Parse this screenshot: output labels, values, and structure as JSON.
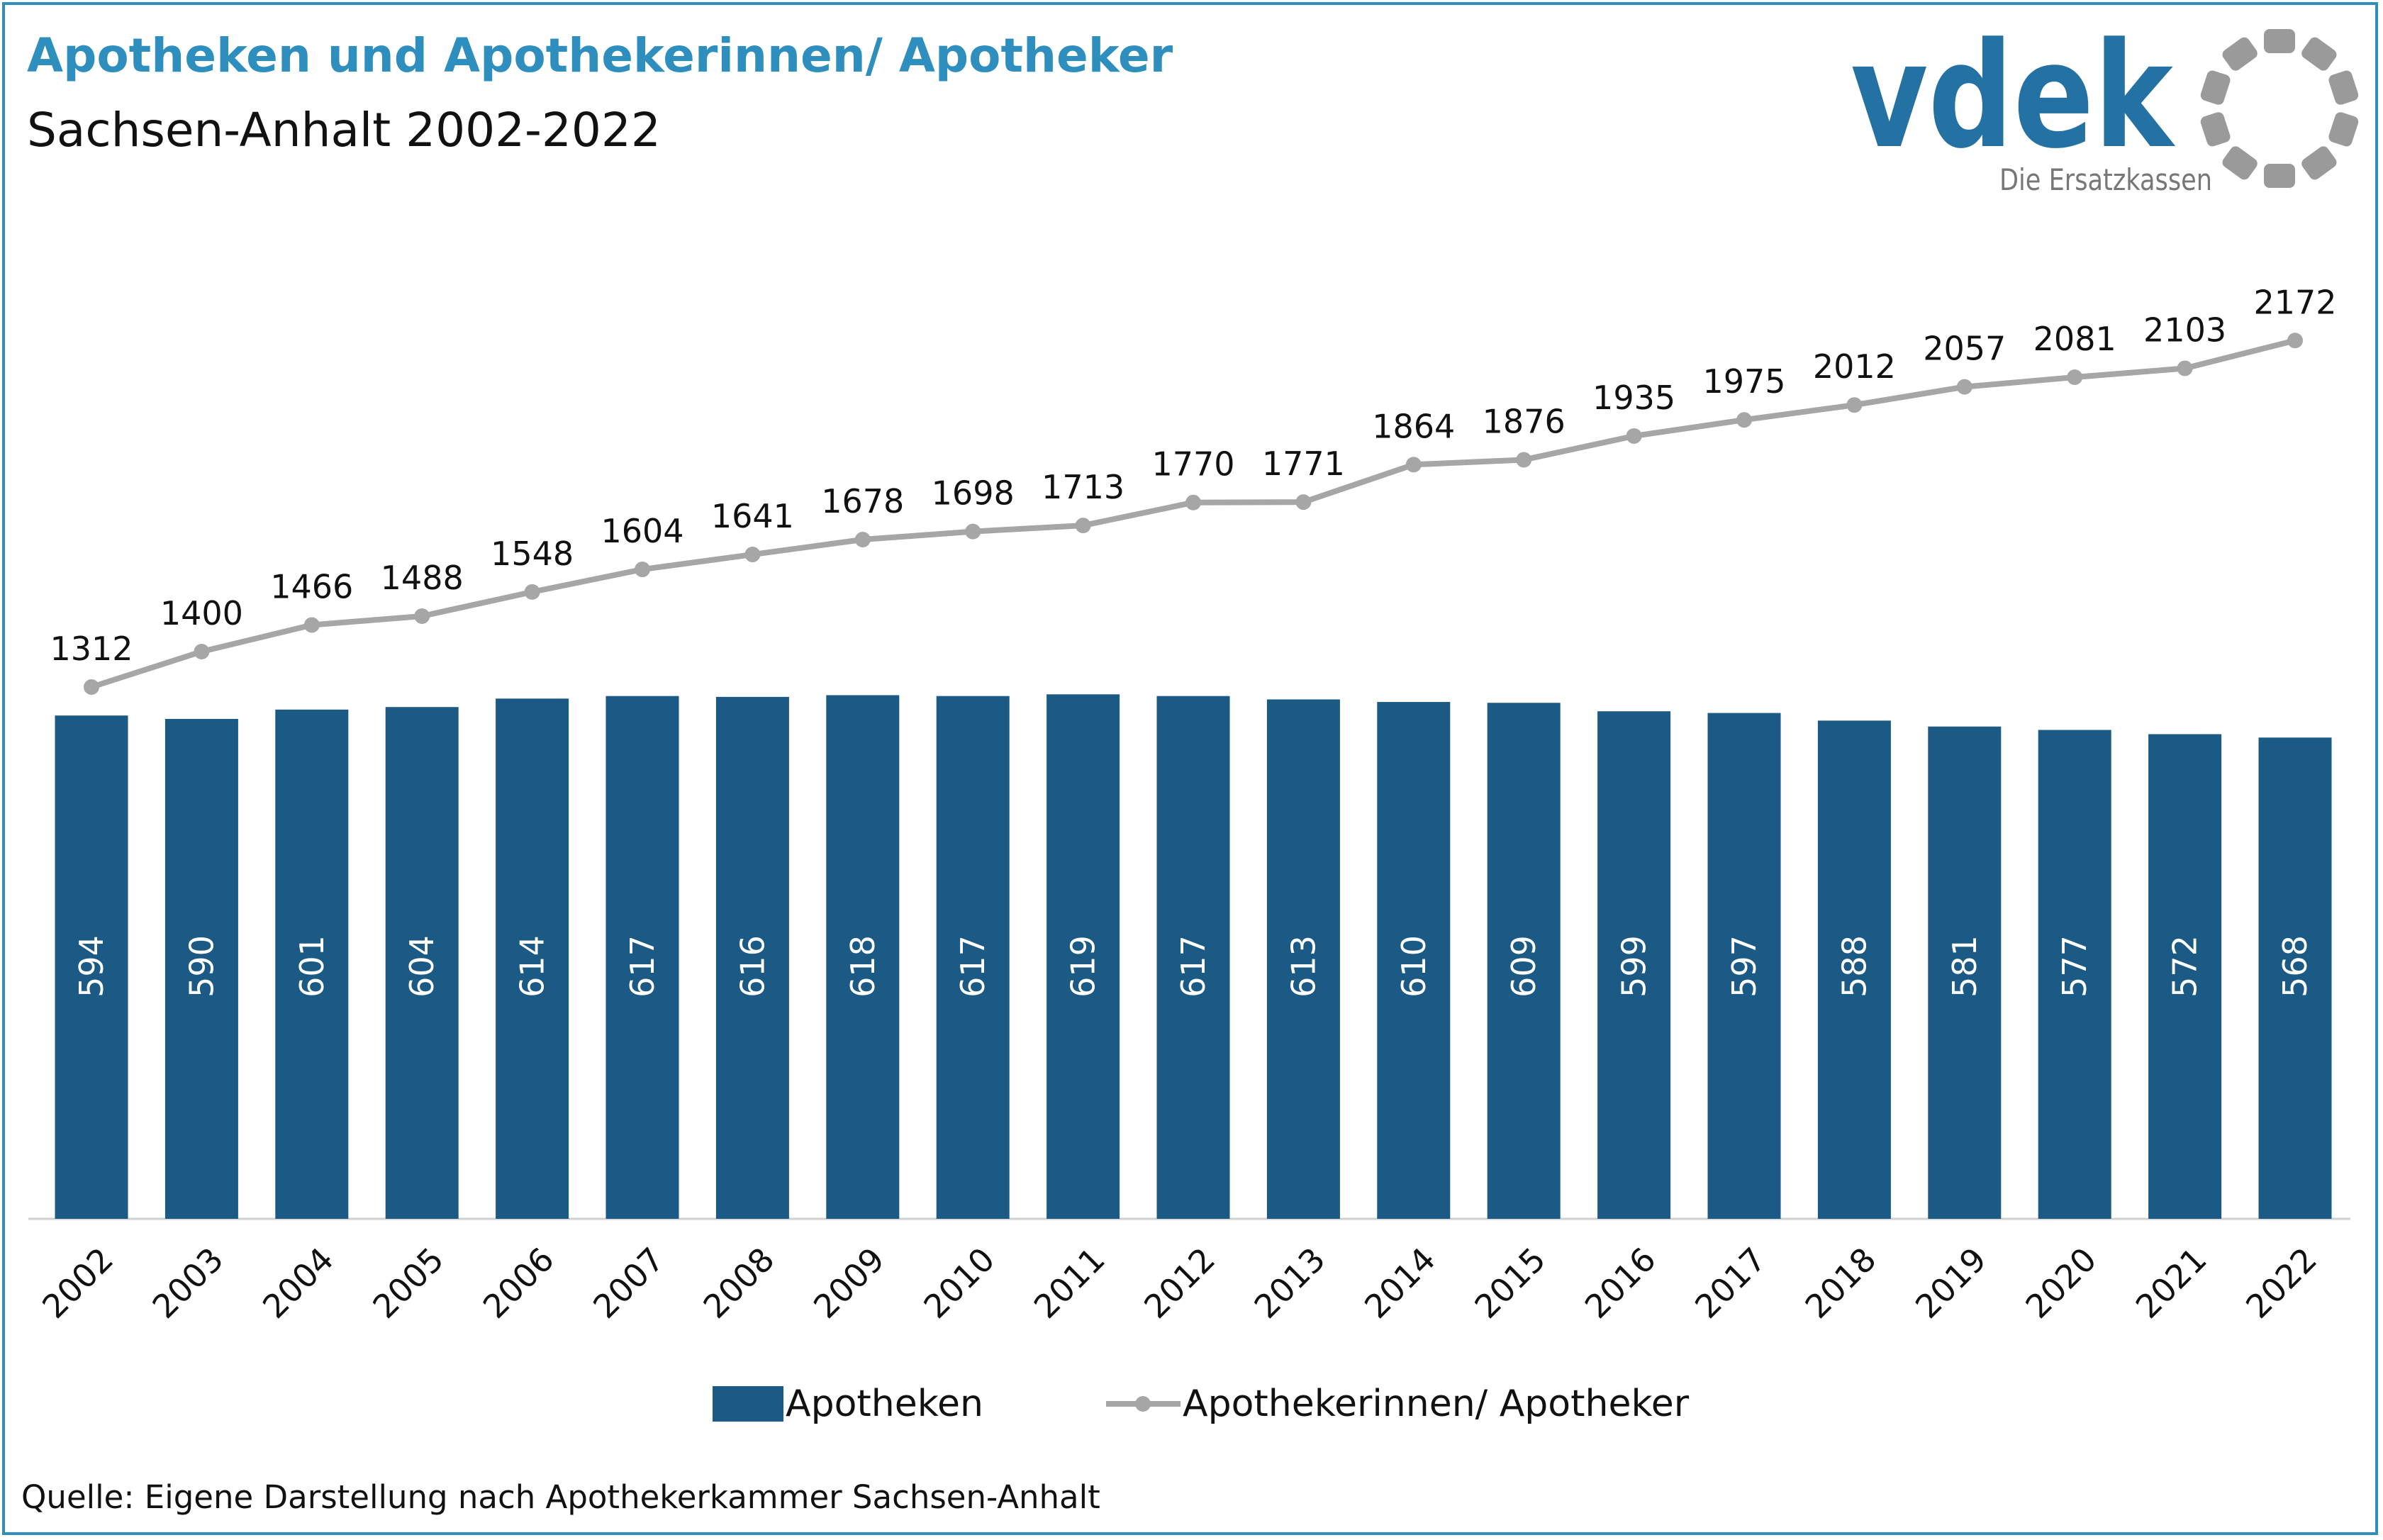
{
  "header": {
    "title": "Apotheken und Apothekerinnen/ Apotheker",
    "subtitle": "Sachsen-Anhalt 2002-2022"
  },
  "logo": {
    "wordmark": "vdek",
    "tagline": "Die Ersatzkassen"
  },
  "footer": {
    "source": "Quelle: Eigene Darstellung nach Apothekerkammer Sachsen-Anhalt"
  },
  "colors": {
    "bar": "#1a5a85",
    "line": "#a6a6a6",
    "accent": "#2e8fbf",
    "logo_text": "#2472a4",
    "logo_ring": "#9a9a9a"
  },
  "chart_data": {
    "type": "bar",
    "categories": [
      "2002",
      "2003",
      "2004",
      "2005",
      "2006",
      "2007",
      "2008",
      "2009",
      "2010",
      "2011",
      "2012",
      "2013",
      "2014",
      "2015",
      "2016",
      "2017",
      "2018",
      "2019",
      "2020",
      "2021",
      "2022"
    ],
    "series": [
      {
        "name": "Apotheken",
        "type": "bar",
        "values": [
          594,
          590,
          601,
          604,
          614,
          617,
          616,
          618,
          617,
          619,
          617,
          613,
          610,
          609,
          599,
          597,
          588,
          581,
          577,
          572,
          568
        ]
      },
      {
        "name": "Apothekerinnen/ Apotheker",
        "type": "line",
        "values": [
          1312,
          1400,
          1466,
          1488,
          1548,
          1604,
          1641,
          1678,
          1698,
          1713,
          1770,
          1771,
          1864,
          1876,
          1935,
          1975,
          2012,
          2057,
          2081,
          2103,
          2172
        ]
      }
    ],
    "legend_position": "bottom",
    "grid": false,
    "data_labels": true
  }
}
